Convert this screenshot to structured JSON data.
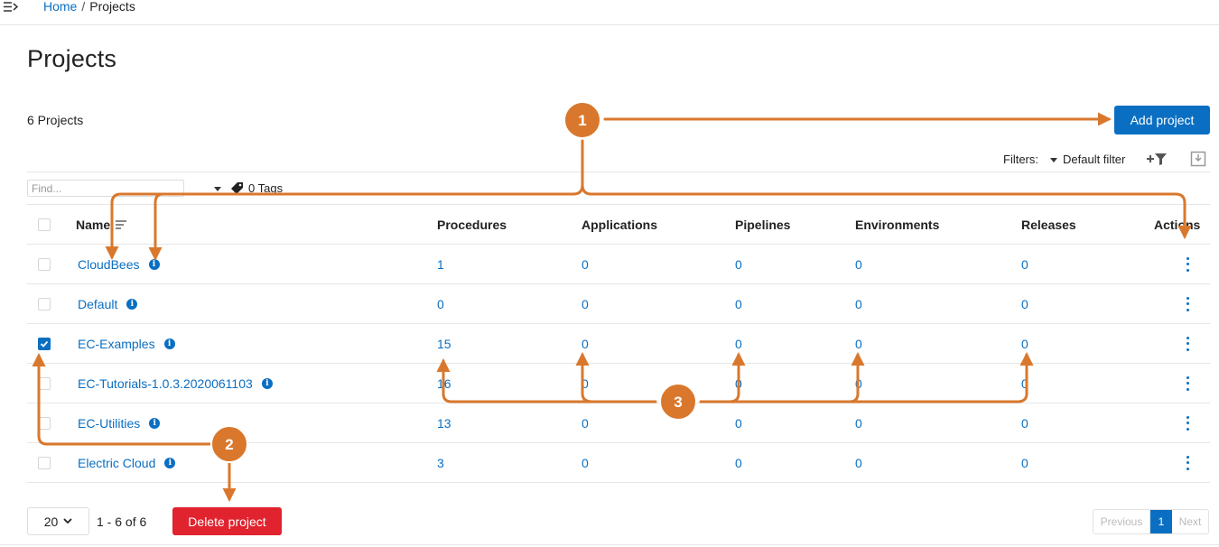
{
  "breadcrumb": {
    "home": "Home",
    "separator": "/",
    "current": "Projects"
  },
  "page": {
    "title": "Projects",
    "count": "6 Projects"
  },
  "toolbar": {
    "add_label": "Add project",
    "filters_label": "Filters:",
    "filter_value": "Default filter"
  },
  "search": {
    "placeholder": "Find...",
    "tags_label": "0 Tags"
  },
  "table": {
    "headers": {
      "name": "Name",
      "procedures": "Procedures",
      "applications": "Applications",
      "pipelines": "Pipelines",
      "environments": "Environments",
      "releases": "Releases",
      "actions": "Actions"
    },
    "rows": [
      {
        "name": "CloudBees",
        "procedures": "1",
        "applications": "0",
        "pipelines": "0",
        "environments": "0",
        "releases": "0",
        "checked": false
      },
      {
        "name": "Default",
        "procedures": "0",
        "applications": "0",
        "pipelines": "0",
        "environments": "0",
        "releases": "0",
        "checked": false
      },
      {
        "name": "EC-Examples",
        "procedures": "15",
        "applications": "0",
        "pipelines": "0",
        "environments": "0",
        "releases": "0",
        "checked": true
      },
      {
        "name": "EC-Tutorials-1.0.3.2020061103",
        "procedures": "16",
        "applications": "0",
        "pipelines": "0",
        "environments": "0",
        "releases": "0",
        "checked": false
      },
      {
        "name": "EC-Utilities",
        "procedures": "13",
        "applications": "0",
        "pipelines": "0",
        "environments": "0",
        "releases": "0",
        "checked": false
      },
      {
        "name": "Electric Cloud",
        "procedures": "3",
        "applications": "0",
        "pipelines": "0",
        "environments": "0",
        "releases": "0",
        "checked": false
      }
    ]
  },
  "footer": {
    "page_size": "20",
    "range": "1 - 6 of 6",
    "delete_label": "Delete project",
    "prev": "Previous",
    "current_page": "1",
    "next": "Next"
  },
  "callouts": [
    "1",
    "2",
    "3"
  ],
  "colors": {
    "accent": "#0a6fc2",
    "danger": "#e0232e",
    "callout": "#d9782d"
  }
}
